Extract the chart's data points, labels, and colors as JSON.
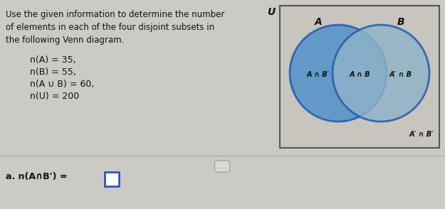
{
  "bg_color": "#cccac4",
  "venn_bg_color": "#c8c5be",
  "title_lines": [
    "Use the given information to determine the number",
    "of elements in each of the four disjoint subsets in",
    "the following Venn diagram."
  ],
  "given_lines": [
    "n(A) = 35,",
    "n(B) = 55,",
    "n(A ∪ B) = 60,",
    "n(U) = 200"
  ],
  "question_line": "a. n(A∩B') =",
  "text_color": "#111111",
  "venn_border_color": "#555555",
  "circle_A_color": "#4d90cc",
  "circle_B_color": "#8fb3c8",
  "circle_edge_color": "#2255aa",
  "label_U": "U",
  "label_A": "A",
  "label_B": "B",
  "label_AnBp": "A ∩ B′",
  "label_AnB": "A ∩ B",
  "label_ApnB": "A′ ∩ B",
  "label_ApnBp": "A′ ∩ B′",
  "answer_box_color": "#2244bb"
}
